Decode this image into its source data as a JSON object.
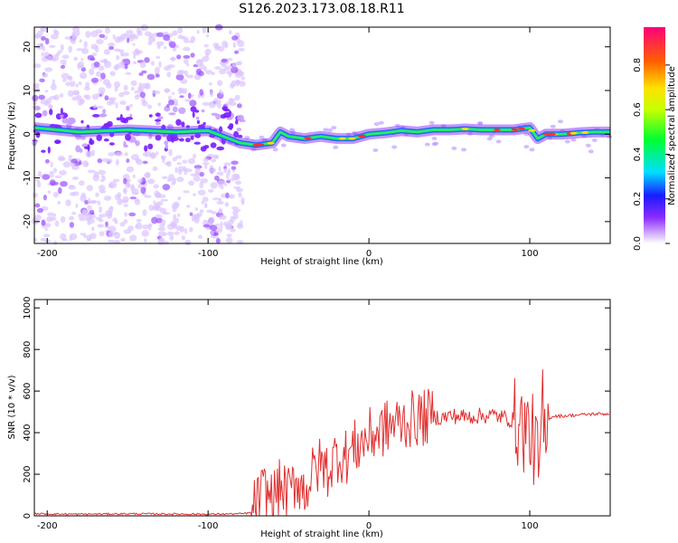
{
  "title": "S126.2023.173.08.18.R11",
  "chart_data": [
    {
      "type": "heatmap",
      "xlabel": "Height of straight line (km)",
      "ylabel": "Frequency (Hz)",
      "xlim": [
        -208,
        150
      ],
      "ylim": [
        -25,
        24.5
      ],
      "xticks": [
        -200,
        -100,
        0,
        100
      ],
      "yticks": [
        -20,
        -10,
        0,
        10,
        20
      ],
      "grid": false,
      "colorbar": {
        "label": "Normalized spectral amplitude",
        "range": [
          0,
          0.97
        ],
        "ticks": [
          0.0,
          0.2,
          0.4,
          0.6,
          0.8
        ]
      },
      "ridge": {
        "x": [
          -208,
          -180,
          -150,
          -120,
          -100,
          -80,
          -70,
          -60,
          -55,
          -50,
          -40,
          -30,
          -20,
          -10,
          0,
          10,
          20,
          30,
          40,
          50,
          60,
          70,
          80,
          90,
          100,
          105,
          110,
          120,
          130,
          140,
          150
        ],
        "y": [
          1.5,
          0.5,
          1.0,
          0.5,
          0.8,
          -2.0,
          -2.5,
          -2.0,
          0.5,
          -0.5,
          -1.0,
          -0.5,
          -1.0,
          -1.0,
          0.0,
          0.3,
          0.8,
          0.5,
          1.0,
          1.0,
          1.2,
          1.0,
          1.0,
          1.0,
          1.5,
          -1.0,
          0.0,
          0.0,
          0.3,
          0.5,
          0.5
        ]
      }
    },
    {
      "type": "line",
      "xlabel": "Height of straight line (km)",
      "ylabel": "SNR (10 * v/v)",
      "xlim": [
        -208,
        150
      ],
      "ylim": [
        0,
        1040
      ],
      "xticks": [
        -200,
        -100,
        0,
        100
      ],
      "yticks": [
        0,
        200,
        400,
        600,
        800,
        1000
      ],
      "color": "#e03030",
      "series": [
        {
          "x": [
            -208,
            -180,
            -150,
            -120,
            -100,
            -80,
            -73,
            -70,
            -65,
            -60,
            -55,
            -50,
            -45,
            -40,
            -35,
            -30,
            -25,
            -20,
            -15,
            -10,
            -5,
            0,
            5,
            10,
            15,
            20,
            25,
            30,
            35,
            40,
            45,
            50,
            55,
            60,
            65,
            70,
            75,
            80,
            85,
            90,
            95,
            100,
            103,
            106,
            108,
            110,
            112,
            115,
            120,
            130,
            140,
            150
          ],
          "y": [
            10,
            8,
            10,
            9,
            8,
            10,
            15,
            60,
            120,
            80,
            140,
            100,
            180,
            120,
            200,
            250,
            220,
            300,
            280,
            320,
            350,
            380,
            400,
            420,
            440,
            450,
            460,
            470,
            470,
            480,
            470,
            480,
            480,
            475,
            480,
            480,
            485,
            480,
            470,
            460,
            430,
            400,
            350,
            200,
            500,
            300,
            470,
            480,
            480,
            485,
            490,
            490
          ]
        }
      ]
    }
  ]
}
